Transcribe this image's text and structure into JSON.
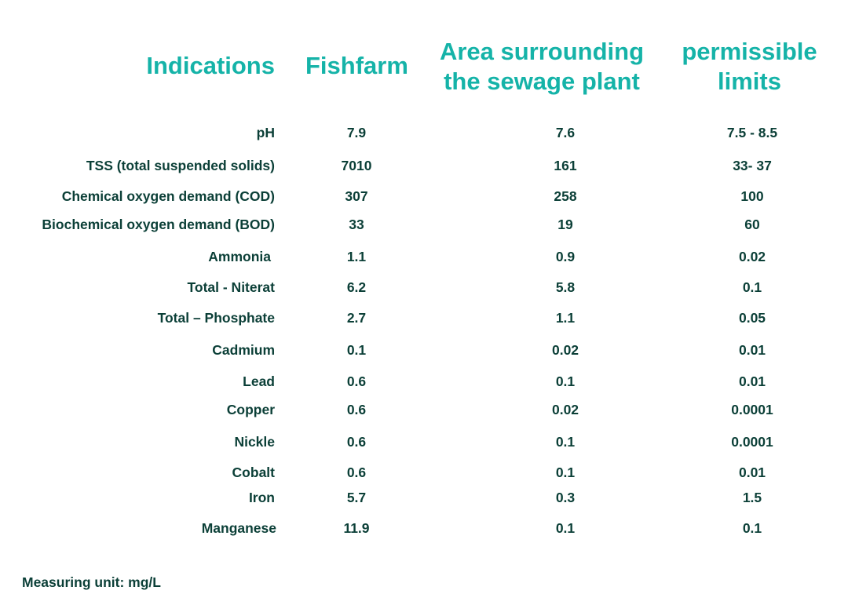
{
  "headers": {
    "indications": "Indications",
    "fishfarm": "Fishfarm",
    "area": [
      "Area surrounding",
      "the sewage plant"
    ],
    "limits": [
      "permissible",
      "limits"
    ]
  },
  "rows": [
    {
      "label": "pH",
      "fishfarm": "7.9",
      "area": "7.6",
      "limit": "7.5 - 8.5"
    },
    {
      "label": "TSS (total suspended solids)",
      "fishfarm": "7010",
      "area": "161",
      "limit": "33- 37"
    },
    {
      "label": "Chemical oxygen demand (COD)",
      "fishfarm": "307",
      "area": "258",
      "limit": "100"
    },
    {
      "label": "Biochemical oxygen demand (BOD)",
      "fishfarm": "33",
      "area": "19",
      "limit": "60"
    },
    {
      "label": "Ammonia",
      "fishfarm": "1.1",
      "area": "0.9",
      "limit": "0.02"
    },
    {
      "label": "Total - Niterat",
      "fishfarm": "6.2",
      "area": "5.8",
      "limit": "0.1"
    },
    {
      "label": "Total – Phosphate",
      "fishfarm": "2.7",
      "area": "1.1",
      "limit": "0.05"
    },
    {
      "label": "Cadmium",
      "fishfarm": "0.1",
      "area": "0.02",
      "limit": "0.01"
    },
    {
      "label": "Lead",
      "fishfarm": "0.6",
      "area": "0.1",
      "limit": "0.01"
    },
    {
      "label": "Copper",
      "fishfarm": "0.6",
      "area": "0.02",
      "limit": "0.0001"
    },
    {
      "label": "Nickle",
      "fishfarm": "0.6",
      "area": "0.1",
      "limit": "0.0001"
    },
    {
      "label": "Cobalt",
      "fishfarm": "0.6",
      "area": "0.1",
      "limit": "0.01"
    },
    {
      "label": "Iron",
      "fishfarm": "5.7",
      "area": "0.3",
      "limit": "1.5"
    },
    {
      "label": "Manganese",
      "fishfarm": "11.9",
      "area": "0.1",
      "limit": "0.1"
    }
  ],
  "footnote": "Measuring unit: mg/L"
}
